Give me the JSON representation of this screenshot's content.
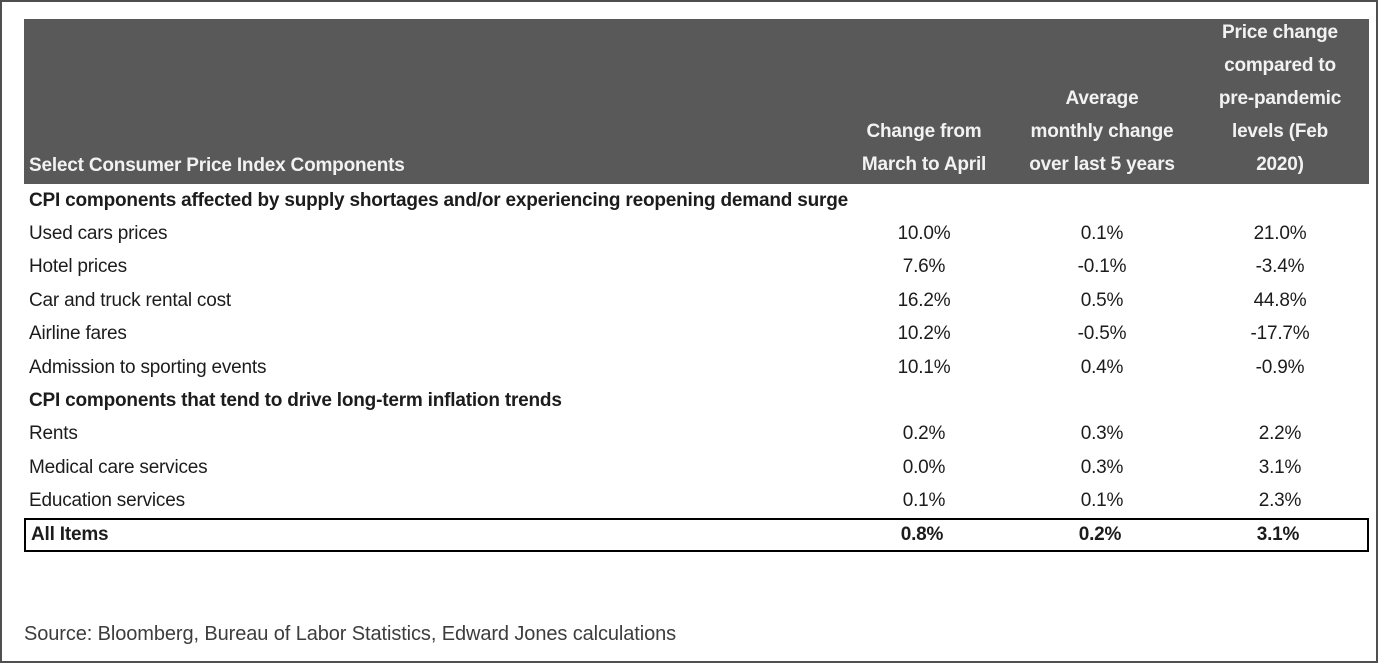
{
  "colors": {
    "header_bg": "#595959",
    "header_text": "#f2f2f2",
    "body_text": "#1c1c1c",
    "total_box_border": "#000000",
    "source_text": "#3d3d3d",
    "frame_border": "#4f4f4f"
  },
  "table": {
    "title_column": "Select Consumer Price Index Components",
    "columns": [
      {
        "label": "Change from March to April",
        "lines": [
          "Change from",
          "March to April"
        ]
      },
      {
        "label": "Average monthly change over last 5 years",
        "lines": [
          "Average",
          "monthly change",
          "over last 5 years"
        ]
      },
      {
        "label": "Price change compared to pre-pandemic levels (Feb 2020)",
        "lines": [
          "Price change",
          "compared to",
          "pre-pandemic",
          "levels (Feb",
          "2020)"
        ]
      }
    ],
    "sections": [
      {
        "header": "CPI components affected by supply shortages and/or experiencing reopening demand surge",
        "rows": [
          {
            "label": "Used cars prices",
            "values": [
              "10.0%",
              "0.1%",
              "21.0%"
            ]
          },
          {
            "label": "Hotel prices",
            "values": [
              "7.6%",
              "-0.1%",
              "-3.4%"
            ]
          },
          {
            "label": "Car and truck rental cost",
            "values": [
              "16.2%",
              "0.5%",
              "44.8%"
            ]
          },
          {
            "label": "Airline fares",
            "values": [
              "10.2%",
              "-0.5%",
              "-17.7%"
            ]
          },
          {
            "label": "Admission to sporting events",
            "values": [
              "10.1%",
              "0.4%",
              "-0.9%"
            ]
          }
        ]
      },
      {
        "header": "CPI components that tend to drive long-term inflation trends",
        "rows": [
          {
            "label": "Rents",
            "values": [
              "0.2%",
              "0.3%",
              "2.2%"
            ]
          },
          {
            "label": "Medical care services",
            "values": [
              "0.0%",
              "0.3%",
              "3.1%"
            ]
          },
          {
            "label": "Education services",
            "values": [
              "0.1%",
              "0.1%",
              "2.3%"
            ]
          }
        ]
      }
    ],
    "total_row": {
      "label": "All Items",
      "values": [
        "0.8%",
        "0.2%",
        "3.1%"
      ]
    }
  },
  "source": "Source: Bloomberg, Bureau of Labor Statistics, Edward Jones calculations",
  "chart_data": {
    "type": "table",
    "title": "Select Consumer Price Index Components",
    "columns": [
      "Component",
      "Change from March to April",
      "Average monthly change over last 5 years",
      "Price change compared to pre-pandemic levels (Feb 2020)"
    ],
    "groups": [
      {
        "group": "CPI components affected by supply shortages and/or experiencing reopening demand surge",
        "rows": [
          [
            "Used cars prices",
            10.0,
            0.1,
            21.0
          ],
          [
            "Hotel prices",
            7.6,
            -0.1,
            -3.4
          ],
          [
            "Car and truck rental cost",
            16.2,
            0.5,
            44.8
          ],
          [
            "Airline fares",
            10.2,
            -0.5,
            -17.7
          ],
          [
            "Admission to sporting events",
            10.1,
            0.4,
            -0.9
          ]
        ]
      },
      {
        "group": "CPI components that tend to drive long-term inflation trends",
        "rows": [
          [
            "Rents",
            0.2,
            0.3,
            2.2
          ],
          [
            "Medical care services",
            0.0,
            0.3,
            3.1
          ],
          [
            "Education services",
            0.1,
            0.1,
            2.3
          ]
        ]
      }
    ],
    "total": [
      "All Items",
      0.8,
      0.2,
      3.1
    ],
    "units": "percent",
    "source": "Source: Bloomberg, Bureau of Labor Statistics, Edward Jones calculations"
  }
}
